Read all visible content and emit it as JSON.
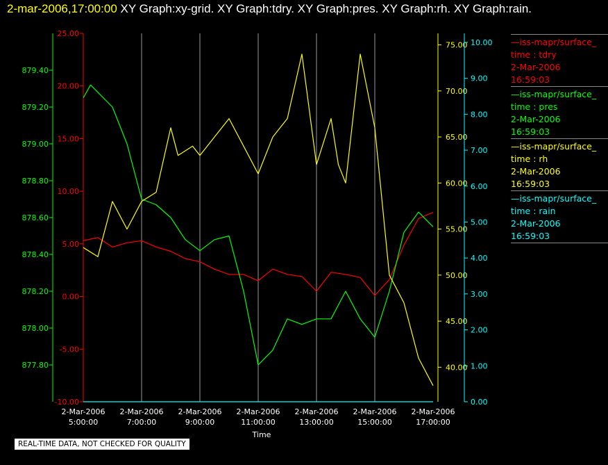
{
  "header": {
    "timestamp": "2-mar-2006,17:00:00",
    "titles": [
      "XY Graph:xy-grid.",
      "XY Graph:tdry.",
      "XY Graph:pres.",
      "XY Graph:rh.",
      "XY Graph:rain."
    ]
  },
  "colors": {
    "tdry": "#ff0000",
    "pres": "#00ff00",
    "rh": "#ffff00",
    "rain": "#00ffff",
    "grid": "#ffffff"
  },
  "legend": [
    {
      "line1": "—iss-mapr/surface_",
      "line2": "time : tdry",
      "line3": "2-Mar-2006",
      "line4": "16:59:03",
      "color": "#ff0000"
    },
    {
      "line1": "—iss-mapr/surface_",
      "line2": "time : pres",
      "line3": "2-Mar-2006",
      "line4": "16:59:03",
      "color": "#00ff00"
    },
    {
      "line1": "—iss-mapr/surface_",
      "line2": "time : rh",
      "line3": "2-Mar-2006",
      "line4": "16:59:03",
      "color": "#ffff00"
    },
    {
      "line1": "—iss-mapr/surface_",
      "line2": "time : rain",
      "line3": "2-Mar-2006",
      "line4": "16:59:03",
      "color": "#00ffff"
    }
  ],
  "note": "REAL-TIME DATA, NOT CHECKED FOR QUALITY",
  "chart_data": {
    "type": "line",
    "xlabel": "Time",
    "x_ticks": [
      {
        "date": "2-Mar-2006",
        "time": "5:00:00"
      },
      {
        "date": "2-Mar-2006",
        "time": "7:00:00"
      },
      {
        "date": "2-Mar-2006",
        "time": "9:00:00"
      },
      {
        "date": "2-Mar-2006",
        "time": "11:00:00"
      },
      {
        "date": "2-Mar-2006",
        "time": "13:00:00"
      },
      {
        "date": "2-Mar-2006",
        "time": "15:00:00"
      },
      {
        "date": "2-Mar-2006",
        "time": "17:00:00"
      }
    ],
    "x_range": [
      "5:00:00",
      "17:00:00"
    ],
    "grid": "vertical",
    "axes": {
      "tdry": {
        "ylim": [
          -10,
          25
        ],
        "ticks": [
          "25.00",
          "20.00",
          "15.00",
          "10.00",
          "5.00",
          "0.00",
          "-5.00",
          "-10.00"
        ]
      },
      "pres": {
        "ylim": [
          877.6,
          879.6
        ],
        "ticks": [
          "879.40",
          "879.20",
          "879.00",
          "878.80",
          "878.60",
          "878.40",
          "878.20",
          "878.00",
          "877.80"
        ]
      },
      "rh": {
        "ylim": [
          36.25,
          76.25
        ],
        "ticks": [
          "75.00",
          "70.00",
          "65.00",
          "60.00",
          "55.00",
          "50.00",
          "45.00",
          "40.00"
        ]
      },
      "rain": {
        "ylim": [
          0,
          10.25
        ],
        "ticks": [
          "10.00",
          "9.00",
          "8.00",
          "7.00",
          "6.00",
          "5.00",
          "4.00",
          "3.00",
          "2.00",
          "1.00",
          "0.00"
        ]
      }
    },
    "series": [
      {
        "name": "tdry",
        "x": [
          "5:00",
          "5:30",
          "6:00",
          "6:30",
          "7:00",
          "7:30",
          "8:00",
          "8:30",
          "9:00",
          "9:30",
          "10:00",
          "10:30",
          "11:00",
          "11:30",
          "12:00",
          "12:30",
          "13:00",
          "13:30",
          "14:00",
          "14:30",
          "15:00",
          "15:30",
          "16:00",
          "16:30",
          "17:00"
        ],
        "values": [
          5.3,
          5.6,
          4.7,
          5.1,
          5.3,
          4.7,
          4.3,
          3.6,
          3.3,
          2.6,
          2.1,
          2.1,
          1.5,
          2.6,
          2.1,
          1.9,
          0.5,
          2.3,
          2.1,
          1.8,
          0.1,
          1.6,
          4.9,
          7.4,
          8.0
        ]
      },
      {
        "name": "pres",
        "x": [
          "5:00",
          "5:15",
          "5:30",
          "6:00",
          "6:30",
          "7:00",
          "7:30",
          "8:00",
          "8:30",
          "9:00",
          "9:30",
          "10:00",
          "10:30",
          "11:00",
          "11:30",
          "12:00",
          "12:30",
          "13:00",
          "13:30",
          "14:00",
          "14:30",
          "15:00",
          "15:30",
          "16:00",
          "16:30",
          "17:00"
        ],
        "values": [
          879.25,
          879.32,
          879.28,
          879.2,
          879.0,
          878.7,
          878.67,
          878.6,
          878.48,
          878.42,
          878.48,
          878.5,
          878.2,
          877.8,
          877.88,
          878.05,
          878.02,
          878.05,
          878.05,
          878.2,
          878.05,
          877.95,
          878.2,
          878.52,
          878.63,
          878.55
        ]
      },
      {
        "name": "rh",
        "x": [
          "5:00",
          "5:30",
          "6:00",
          "6:30",
          "7:00",
          "7:30",
          "8:00",
          "8:15",
          "8:45",
          "9:00",
          "9:30",
          "10:00",
          "10:30",
          "11:00",
          "11:30",
          "12:00",
          "12:30",
          "13:00",
          "13:30",
          "13:45",
          "14:00",
          "14:30",
          "15:00",
          "15:15",
          "15:30",
          "16:00",
          "16:30",
          "17:00"
        ],
        "values": [
          53.0,
          52.0,
          58.0,
          55.0,
          58.0,
          59.0,
          66.0,
          63.0,
          64.0,
          63.0,
          65.0,
          67.0,
          64.0,
          61.0,
          65.0,
          67.0,
          74.0,
          62.0,
          67.0,
          62.0,
          60.0,
          74.0,
          66.0,
          58.0,
          50.0,
          47.0,
          41.0,
          38.0
        ]
      },
      {
        "name": "rain",
        "x": [
          "5:00",
          "17:00"
        ],
        "values": [
          0.0,
          0.0
        ]
      }
    ]
  }
}
